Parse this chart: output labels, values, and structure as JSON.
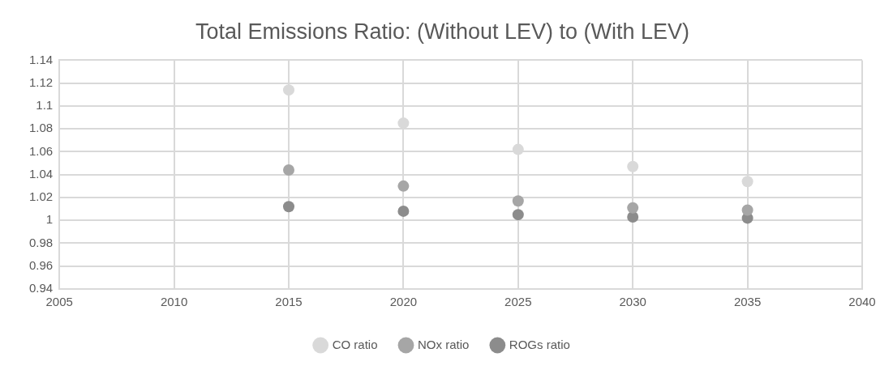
{
  "chart_data": {
    "type": "scatter",
    "title": "Total Emissions Ratio: (Without LEV) to (With LEV)",
    "x": [
      2015,
      2020,
      2025,
      2030,
      2035
    ],
    "series": [
      {
        "name": "CO ratio",
        "color": "#d9d9d9",
        "values": [
          1.114,
          1.085,
          1.062,
          1.047,
          1.034
        ]
      },
      {
        "name": "NOx ratio",
        "color": "#a6a6a6",
        "values": [
          1.044,
          1.03,
          1.017,
          1.011,
          1.009
        ]
      },
      {
        "name": "ROGs ratio",
        "color": "#8c8c8c",
        "values": [
          1.012,
          1.008,
          1.005,
          1.003,
          1.002
        ]
      }
    ],
    "xlim": [
      2005,
      2040
    ],
    "xticks": [
      2005,
      2010,
      2015,
      2020,
      2025,
      2030,
      2035,
      2040
    ],
    "ylim": [
      0.94,
      1.14
    ],
    "yticks": [
      0.94,
      0.96,
      0.98,
      1,
      1.02,
      1.04,
      1.06,
      1.08,
      1.1,
      1.12,
      1.14
    ],
    "grid": true,
    "legend": "bottom",
    "marker": "circle"
  }
}
